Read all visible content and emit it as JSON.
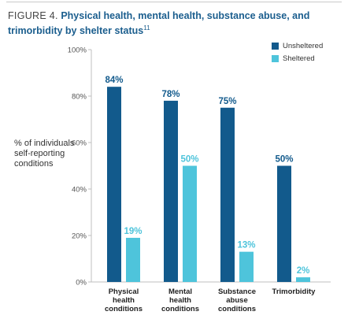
{
  "figure": {
    "label": "FIGURE 4.",
    "title": "Physical health, mental health, substance abuse, and trimorbidity by shelter status",
    "superscript": "11"
  },
  "colors": {
    "unsheltered": "#125a8c",
    "sheltered": "#4ec4db",
    "title": "#1b5e8e",
    "axis": "#bfbfbf"
  },
  "legend": {
    "unsheltered": "Unsheltered",
    "sheltered": "Sheltered"
  },
  "chart_data": {
    "type": "bar",
    "title": "Physical health, mental health, substance abuse, and trimorbidity by shelter status",
    "ylabel": "% of individuals self-reporting conditions",
    "xlabel": "",
    "ylim": [
      0,
      100
    ],
    "yticks": [
      "0%",
      "20%",
      "40%",
      "60%",
      "80%",
      "100%"
    ],
    "ytick_values": [
      0,
      20,
      40,
      60,
      80,
      100
    ],
    "grid": false,
    "legend_position": "top-right",
    "categories": [
      [
        "Physical",
        "health",
        "conditions"
      ],
      [
        "Mental",
        "health",
        "conditions"
      ],
      [
        "Substance",
        "abuse",
        "conditions"
      ],
      [
        "Trimorbidity"
      ]
    ],
    "series": [
      {
        "name": "Unsheltered",
        "values": [
          84,
          78,
          75,
          50
        ],
        "labels": [
          "84%",
          "78%",
          "75%",
          "50%"
        ]
      },
      {
        "name": "Sheltered",
        "values": [
          19,
          50,
          13,
          2
        ],
        "labels": [
          "19%",
          "50%",
          "13%",
          "2%"
        ]
      }
    ]
  }
}
